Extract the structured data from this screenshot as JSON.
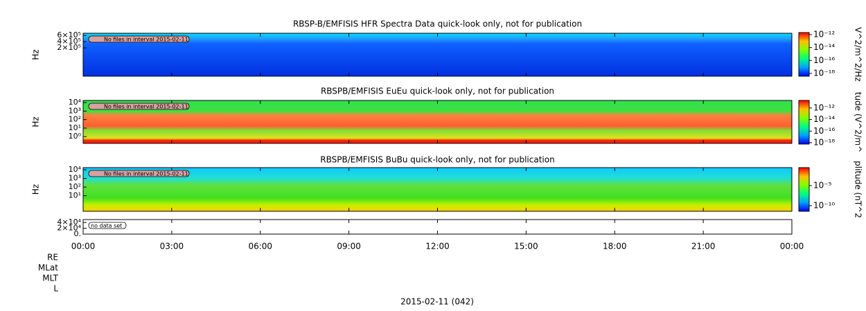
{
  "chart_data": [
    {
      "type": "spectrogram",
      "title": "RBSP-B/EMFISIS  HFR Spectra Data quick-look only, not for publication",
      "ylabel": "Hz",
      "annotation": "No files in interval 2015-02-11",
      "yscale": "linear",
      "ylim": [
        -710000,
        670000
      ],
      "yticks": [
        {
          "value": 200000,
          "label": "2×10⁵"
        },
        {
          "value": 400000,
          "label": "4×10⁵"
        },
        {
          "value": 600000,
          "label": "6×10⁵"
        }
      ],
      "colorbar": {
        "label": "V^2/m^2/Hz",
        "scale": "log",
        "lim": [
          3.7e-19,
          2.1e-12
        ],
        "ticks": [
          {
            "value": 1e-12,
            "label": "10⁻¹²"
          },
          {
            "value": 1e-14,
            "label": "10⁻¹⁴"
          },
          {
            "value": 1e-16,
            "label": "10⁻¹⁶"
          },
          {
            "value": 1e-18,
            "label": "10⁻¹⁸"
          }
        ]
      }
    },
    {
      "type": "spectrogram",
      "title": "RBSPB/EMFISIS  EuEu quick-look only, not for publication",
      "ylabel": "Hz",
      "annotation": "No files in interval 2015-02-11",
      "yscale": "log",
      "ylim": [
        0.16,
        17800
      ],
      "yticks": [
        {
          "value": 1,
          "label": "10⁰"
        },
        {
          "value": 10,
          "label": "10¹"
        },
        {
          "value": 100,
          "label": "10²"
        },
        {
          "value": 1000,
          "label": "10³"
        },
        {
          "value": 10000,
          "label": "10⁴"
        }
      ],
      "colorbar": {
        "label": "tude (V^2/m^",
        "scale": "log",
        "lim": [
          5.7e-19,
          2e-11
        ],
        "ticks": [
          {
            "value": 1e-12,
            "label": "10⁻¹²"
          },
          {
            "value": 1e-14,
            "label": "10⁻¹⁴"
          },
          {
            "value": 1e-16,
            "label": "10⁻¹⁶"
          },
          {
            "value": 1e-18,
            "label": "10⁻¹⁸"
          }
        ]
      }
    },
    {
      "type": "spectrogram",
      "title": "RBSPB/EMFISIS  BuBu quick-look only, not for publication",
      "ylabel": "Hz",
      "annotation": "No files in interval 2015-02-11",
      "yscale": "log",
      "ylim": [
        0.16,
        17800
      ],
      "yticks": [
        {
          "value": 10,
          "label": "10¹"
        },
        {
          "value": 100,
          "label": "10²"
        },
        {
          "value": 1000,
          "label": "10³"
        },
        {
          "value": 10000,
          "label": "10⁴"
        }
      ],
      "colorbar": {
        "label": "plitude (nT^2",
        "scale": "log",
        "lim": [
          4e-12,
          0.3
        ],
        "ticks": [
          {
            "value": 1e-05,
            "label": "10⁻⁵"
          },
          {
            "value": 1e-10,
            "label": "10⁻¹⁰"
          }
        ]
      }
    },
    {
      "type": "empty",
      "annotation": "no data set",
      "yscale": "linear",
      "ylim": [
        0,
        50000
      ],
      "yticks": [
        {
          "value": 0,
          "label": "0."
        },
        {
          "value": 20000,
          "label": "2×10⁴"
        },
        {
          "value": 40000,
          "label": "4×10⁴"
        }
      ]
    }
  ],
  "x_axis": {
    "xlim": [
      0,
      24
    ],
    "xticks": [
      {
        "value": 0,
        "label": "00:00"
      },
      {
        "value": 3,
        "label": "03:00"
      },
      {
        "value": 6,
        "label": "06:00"
      },
      {
        "value": 9,
        "label": "09:00"
      },
      {
        "value": 12,
        "label": "12:00"
      },
      {
        "value": 15,
        "label": "15:00"
      },
      {
        "value": 18,
        "label": "18:00"
      },
      {
        "value": 21,
        "label": "21:00"
      },
      {
        "value": 24,
        "label": "00:00"
      }
    ]
  },
  "ephemeris_labels": [
    "RE",
    "MLat",
    "MLT",
    "L"
  ],
  "date_label": "2015-02-11 (042)"
}
